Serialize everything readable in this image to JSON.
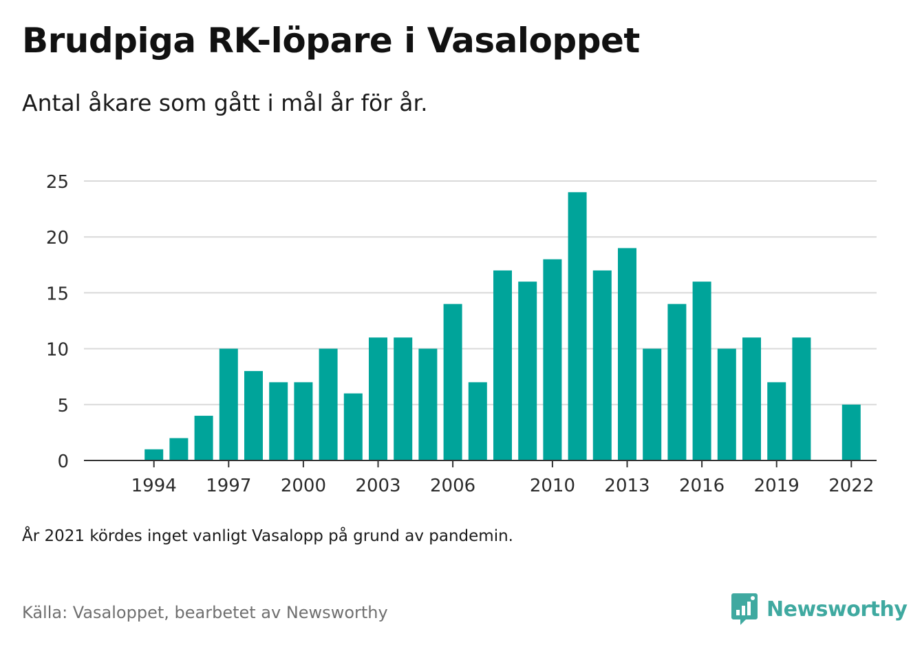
{
  "title": "Brudpiga RK-löpare i Vasaloppet",
  "subtitle": "Antal åkare som gått i mål år för år.",
  "note": "År 2021 kördes inget vanligt Vasalopp på grund av pandemin.",
  "source": "Källa: Vasaloppet, bearbetet av Newsworthy",
  "brand": {
    "name": "Newsworthy",
    "icon": "newsworthy-logo-icon",
    "color": "#3fa9a0"
  },
  "chart_data": {
    "type": "bar",
    "title": "",
    "xlabel": "",
    "ylabel": "",
    "bar_color": "#00a49a",
    "grid": true,
    "ylim": [
      0,
      25
    ],
    "yticks": [
      0,
      5,
      10,
      15,
      20,
      25
    ],
    "xticks": [
      "1994",
      "1997",
      "2000",
      "2003",
      "2006",
      "2010",
      "2013",
      "2016",
      "2019",
      "2022"
    ],
    "categories": [
      "1993",
      "1994",
      "1995",
      "1996",
      "1997",
      "1998",
      "1999",
      "2000",
      "2001",
      "2002",
      "2003",
      "2004",
      "2005",
      "2006",
      "2007",
      "2008",
      "2009",
      "2010",
      "2011",
      "2012",
      "2013",
      "2014",
      "2015",
      "2016",
      "2017",
      "2018",
      "2019",
      "2020",
      "2021",
      "2022"
    ],
    "values": [
      0,
      1,
      2,
      4,
      10,
      8,
      7,
      7,
      10,
      6,
      11,
      11,
      10,
      14,
      7,
      17,
      16,
      18,
      24,
      17,
      19,
      10,
      14,
      16,
      10,
      11,
      7,
      11,
      null,
      5
    ]
  }
}
